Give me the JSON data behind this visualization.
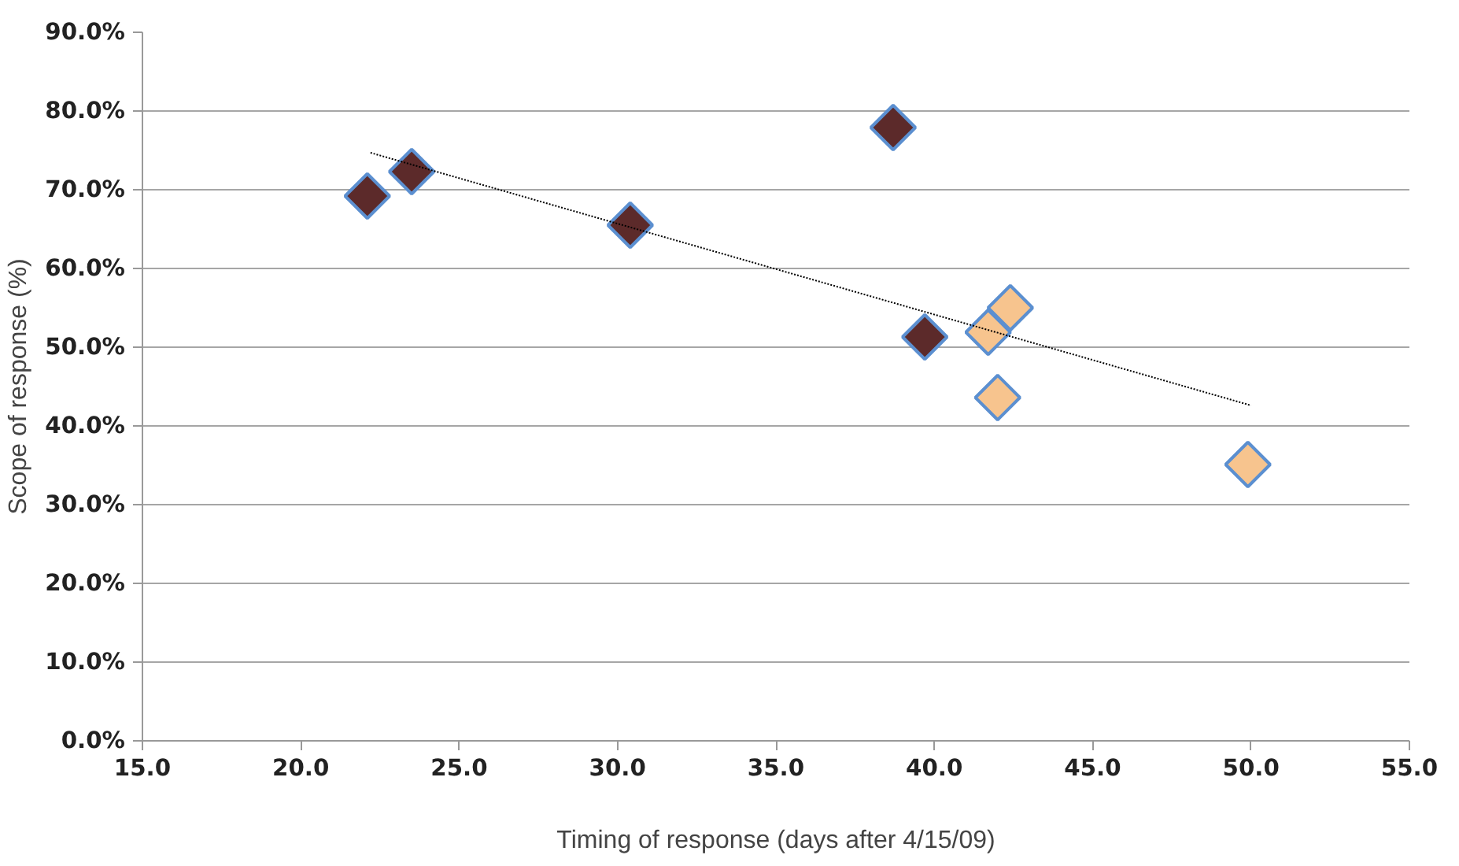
{
  "chart_data": {
    "type": "scatter",
    "xlabel": "Timing of response (days after 4/15/09)",
    "ylabel": "Scope of response (%)",
    "xlim": [
      15,
      55
    ],
    "xticks": [
      {
        "value": 15,
        "label": "15.0"
      },
      {
        "value": 20,
        "label": "20.0"
      },
      {
        "value": 25,
        "label": "25.0"
      },
      {
        "value": 30,
        "label": "30.0"
      },
      {
        "value": 35,
        "label": "35.0"
      },
      {
        "value": 40,
        "label": "40.0"
      },
      {
        "value": 45,
        "label": "45.0"
      },
      {
        "value": 50,
        "label": "50.0"
      },
      {
        "value": 55,
        "label": "55.0"
      }
    ],
    "ylim": [
      0,
      90
    ],
    "yticks": [
      {
        "value": 0,
        "label": "0.0%"
      },
      {
        "value": 10,
        "label": "10.0%"
      },
      {
        "value": 20,
        "label": "20.0%"
      },
      {
        "value": 30,
        "label": "30.0%"
      },
      {
        "value": 40,
        "label": "40.0%"
      },
      {
        "value": 50,
        "label": "50.0%"
      },
      {
        "value": 60,
        "label": "60.0%"
      },
      {
        "value": 70,
        "label": "70.0%"
      },
      {
        "value": 80,
        "label": "80.0%"
      },
      {
        "value": 90,
        "label": "90.0%"
      }
    ],
    "grid": "y",
    "marker": "diamond",
    "series": [
      {
        "color": "#5c2a2a",
        "x": [
          22.1,
          23.5,
          30.4,
          38.7,
          39.7
        ],
        "values": [
          69.2,
          72.3,
          65.5,
          77.9,
          51.3
        ]
      },
      {
        "color": "#f7c48e",
        "x": [
          41.7,
          42.4,
          42.0,
          49.9
        ],
        "values": [
          51.9,
          55.0,
          43.6,
          35.1
        ]
      },
      {
        "type": "line",
        "color": "#000000",
        "line_style": "dotted",
        "marker": "none",
        "x": [
          22.2,
          50.0
        ],
        "values": [
          74.7,
          42.6
        ]
      }
    ]
  }
}
